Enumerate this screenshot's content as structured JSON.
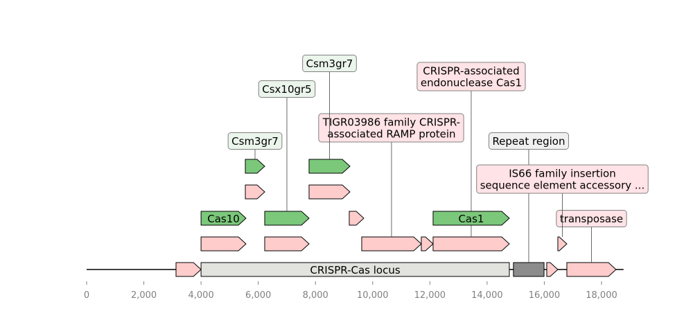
{
  "chart_data": {
    "type": "feature-map",
    "xlim": [
      0,
      18770
    ],
    "xticks": [
      0,
      {
        "value": 2000,
        "label": "2,000"
      },
      {
        "value": 4000,
        "label": "4,000"
      },
      {
        "value": 6000,
        "label": "6,000"
      },
      {
        "value": 8000,
        "label": "8,000"
      },
      {
        "value": 10000,
        "label": "10,000"
      },
      {
        "value": 12000,
        "label": "12,000"
      },
      {
        "value": 14000,
        "label": "14,000"
      },
      {
        "value": 16000,
        "label": "16,000"
      },
      {
        "value": 18000,
        "label": "18,000"
      }
    ],
    "features": [
      {
        "start": 3125,
        "end": 4000,
        "strand": 1,
        "color": "#ffcccc"
      },
      {
        "start": 4000,
        "end": 14777,
        "strand": 0,
        "color": "#e2e2de",
        "label": "CRISPR-Cas locus"
      },
      {
        "start": 14920,
        "end": 15990,
        "strand": 0,
        "color": "#8c8c8c",
        "label": "Repeat region"
      },
      {
        "start": 16085,
        "end": 16473,
        "strand": 1,
        "color": "#ffcccc"
      },
      {
        "start": 16788,
        "end": 18508,
        "strand": 1,
        "color": "#ffcccc",
        "label": "transposase"
      },
      {
        "start": 4000,
        "end": 5572,
        "strand": 1,
        "color": "#ffcccc"
      },
      {
        "start": 6226,
        "end": 7776,
        "strand": 1,
        "color": "#ffcccc"
      },
      {
        "start": 9617,
        "end": 11700,
        "strand": 1,
        "color": "#ffcccc",
        "label": "TIGR03986 family CRISPR-\nassociated RAMP protein"
      },
      {
        "start": 11700,
        "end": 12112,
        "strand": 1,
        "color": "#ffcccc"
      },
      {
        "start": 12112,
        "end": 14777,
        "strand": 1,
        "color": "#ffcccc",
        "label": "CRISPR-associated\nendonuclease Cas1"
      },
      {
        "start": 16473,
        "end": 16788,
        "strand": 1,
        "color": "#ffcccc",
        "label": "IS66 family insertion\nsequence element accessory ..."
      },
      {
        "start": 4000,
        "end": 5572,
        "strand": 1,
        "color": "#7bc87b",
        "label": "Cas10"
      },
      {
        "start": 6226,
        "end": 7776,
        "strand": 1,
        "color": "#7bc87b",
        "label": "Csx10gr5"
      },
      {
        "start": 9181,
        "end": 9690,
        "strand": 1,
        "color": "#ffcccc"
      },
      {
        "start": 12112,
        "end": 14777,
        "strand": 1,
        "color": "#7bc87b",
        "label": "Cas1"
      },
      {
        "start": 5548,
        "end": 6226,
        "strand": 1,
        "color": "#ffcccc"
      },
      {
        "start": 7776,
        "end": 9205,
        "strand": 1,
        "color": "#ffcccc"
      },
      {
        "start": 5548,
        "end": 6226,
        "strand": 1,
        "color": "#7bc87b",
        "label": "Csm3gr7"
      },
      {
        "start": 7776,
        "end": 9205,
        "strand": 1,
        "color": "#7bc87b",
        "label": "Csm3gr7"
      }
    ]
  }
}
